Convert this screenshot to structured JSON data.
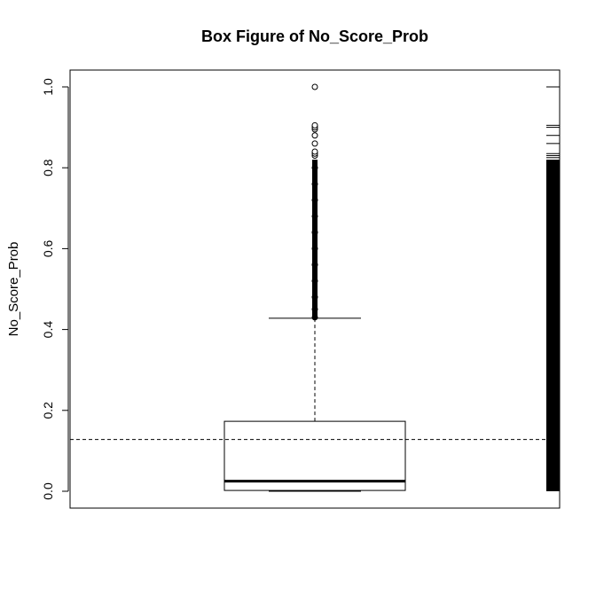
{
  "chart_data": {
    "type": "boxplot",
    "title": "Box Figure of No_Score_Prob",
    "xlabel": "",
    "ylabel": "No_Score_Prob",
    "ylim": [
      0,
      1
    ],
    "yticks": [
      "0.0",
      "0.2",
      "0.4",
      "0.6",
      "0.8",
      "1.0"
    ],
    "grid": false,
    "box": {
      "min": 0.0,
      "q1": 0.002,
      "median": 0.025,
      "q3": 0.173,
      "whisker_high": 0.428
    },
    "mean_line": 0.128,
    "outliers": [
      0.43,
      0.45,
      0.48,
      0.52,
      0.56,
      0.6,
      0.64,
      0.68,
      0.72,
      0.76,
      0.8,
      0.83,
      0.835,
      0.84,
      0.86,
      0.88,
      0.895,
      0.9,
      0.905,
      1.0
    ],
    "rug": {
      "dense_range": [
        0.0,
        0.82
      ],
      "sparse_values": [
        0.825,
        0.83,
        0.835,
        0.86,
        0.88,
        0.9,
        0.905,
        1.0
      ]
    },
    "colors": {
      "ink": "#000000",
      "background": "#ffffff"
    }
  }
}
